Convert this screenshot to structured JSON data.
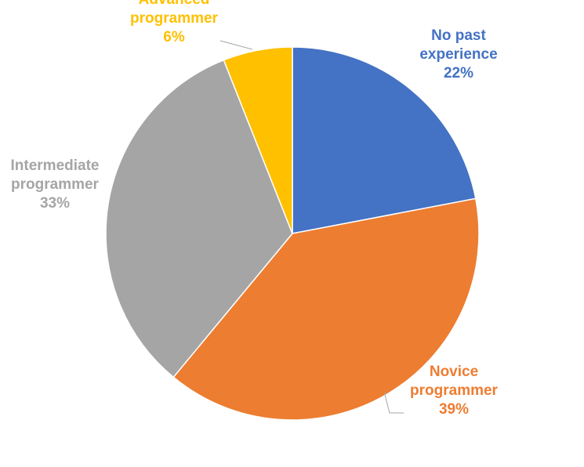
{
  "chart_data": {
    "type": "pie",
    "title": "",
    "slices": [
      {
        "label_lines": [
          "No past",
          "experience"
        ],
        "value": 22,
        "value_label": "22%",
        "color": "#4472C4"
      },
      {
        "label_lines": [
          "Novice",
          "programmer"
        ],
        "value": 39,
        "value_label": "39%",
        "color": "#ED7D31"
      },
      {
        "label_lines": [
          "Intermediate",
          "programmer"
        ],
        "value": 33,
        "value_label": "33%",
        "color": "#A5A5A5"
      },
      {
        "label_lines": [
          "Advanced",
          "programmer"
        ],
        "value": 6,
        "value_label": "6%",
        "color": "#FFC000"
      }
    ],
    "start_angle": "12 o'clock",
    "direction": "clockwise",
    "legend": "none"
  }
}
